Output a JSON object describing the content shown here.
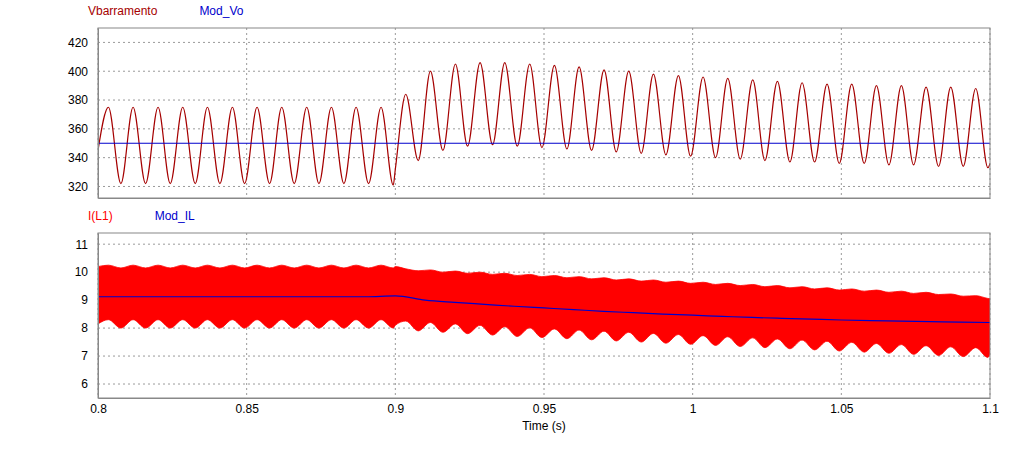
{
  "chart_data": [
    {
      "type": "line",
      "grid": true,
      "legend": "top-left",
      "tick_labels": "y",
      "xlim": [
        0.8,
        1.1
      ],
      "xticks": [
        0.8,
        0.85,
        0.9,
        0.95,
        1,
        1.05,
        1.1
      ],
      "ylim": [
        312,
        430
      ],
      "yticks": [
        320,
        340,
        360,
        380,
        400,
        420
      ],
      "series": [
        {
          "name": "Vbarramento",
          "color": "#a50000",
          "type": "line",
          "x": [
            0.8,
            0.8035,
            0.8077,
            0.8118,
            0.816,
            0.8202,
            0.8243,
            0.8285,
            0.8327,
            0.8368,
            0.841,
            0.8452,
            0.8493,
            0.8535,
            0.8577,
            0.8618,
            0.866,
            0.8702,
            0.8743,
            0.8785,
            0.8827,
            0.8868,
            0.891,
            0.8952,
            0.8993,
            0.9,
            0.9035,
            0.9077,
            0.9118,
            0.916,
            0.9202,
            0.9243,
            0.9285,
            0.9327,
            0.9368,
            0.941,
            0.9452,
            0.9493,
            0.9535,
            0.9577,
            0.9618,
            0.966,
            0.9702,
            0.9743,
            0.9785,
            0.9827,
            0.9868,
            0.991,
            0.9952,
            0.9993,
            1.0035,
            1.0077,
            1.0118,
            1.016,
            1.0202,
            1.0243,
            1.0285,
            1.0327,
            1.0368,
            1.041,
            1.0452,
            1.0493,
            1.0535,
            1.0577,
            1.0618,
            1.066,
            1.0702,
            1.0743,
            1.0785,
            1.0827,
            1.0868,
            1.091,
            1.0952,
            1.0993,
            1.1
          ],
          "values": [
            345,
            375,
            322,
            375,
            322,
            375,
            322,
            375,
            322,
            375,
            322,
            375,
            322,
            375,
            322,
            375,
            322,
            375,
            322,
            375,
            322,
            375,
            322,
            375,
            321,
            332,
            384,
            338,
            400,
            345,
            405,
            348,
            406,
            349,
            406,
            348,
            405,
            347,
            404,
            346,
            403,
            345,
            401,
            344,
            400,
            343,
            398,
            342,
            397,
            341,
            396,
            340,
            395,
            339,
            394,
            338,
            393,
            337,
            392,
            337,
            391,
            336,
            391,
            336,
            390,
            335,
            390,
            335,
            389,
            334,
            389,
            334,
            388,
            333,
            336
          ]
        },
        {
          "name": "Mod_Vo",
          "color": "#0000cc",
          "type": "line",
          "x": [
            0.8,
            1.1
          ],
          "values": [
            350,
            350
          ]
        }
      ]
    },
    {
      "type": "line",
      "grid": true,
      "legend": "top-left",
      "tick_labels": true,
      "xlabel": "Time (s)",
      "xlim": [
        0.8,
        1.1
      ],
      "xticks": [
        0.8,
        0.85,
        0.9,
        0.95,
        1,
        1.05,
        1.1
      ],
      "ylim": [
        5.5,
        11.4
      ],
      "yticks": [
        6,
        7,
        8,
        9,
        10,
        11
      ],
      "series": [
        {
          "name": "I(L1)",
          "color": "#ff0000",
          "type": "area",
          "x": [
            0.8,
            0.8035,
            0.8077,
            0.8118,
            0.816,
            0.8202,
            0.8243,
            0.8285,
            0.8327,
            0.8368,
            0.841,
            0.8452,
            0.8493,
            0.8535,
            0.8577,
            0.8618,
            0.866,
            0.8702,
            0.8743,
            0.8785,
            0.8827,
            0.8868,
            0.891,
            0.8952,
            0.8993,
            0.9,
            0.9035,
            0.9077,
            0.9118,
            0.916,
            0.9202,
            0.9243,
            0.9285,
            0.9327,
            0.9368,
            0.941,
            0.9452,
            0.9493,
            0.9535,
            0.9577,
            0.9618,
            0.966,
            0.9702,
            0.9743,
            0.9785,
            0.9827,
            0.9868,
            0.991,
            0.9952,
            0.9993,
            1.0035,
            1.0077,
            1.0118,
            1.016,
            1.0202,
            1.0243,
            1.0285,
            1.0327,
            1.0368,
            1.041,
            1.0452,
            1.0493,
            1.0535,
            1.0577,
            1.0618,
            1.066,
            1.0702,
            1.0743,
            1.0785,
            1.0827,
            1.0868,
            1.091,
            1.0952,
            1.0993,
            1.1
          ],
          "low": [
            8.15,
            8.3,
            8.0,
            8.3,
            8.0,
            8.3,
            8.0,
            8.3,
            8.0,
            8.3,
            8.0,
            8.3,
            8.0,
            8.3,
            8.0,
            8.3,
            8.0,
            8.3,
            8.0,
            8.3,
            8.0,
            8.3,
            8.0,
            8.3,
            8.0,
            8.1,
            8.25,
            7.9,
            8.2,
            7.85,
            8.15,
            7.8,
            8.1,
            7.75,
            8.05,
            7.7,
            8.01,
            7.66,
            7.97,
            7.62,
            7.93,
            7.58,
            7.89,
            7.54,
            7.85,
            7.5,
            7.81,
            7.46,
            7.77,
            7.42,
            7.73,
            7.38,
            7.69,
            7.34,
            7.65,
            7.3,
            7.61,
            7.26,
            7.57,
            7.22,
            7.53,
            7.18,
            7.49,
            7.14,
            7.45,
            7.1,
            7.41,
            7.06,
            7.37,
            7.02,
            7.33,
            6.98,
            7.3,
            6.95,
            7.1
          ],
          "high": [
            10.2,
            10.25,
            10.15,
            10.25,
            10.15,
            10.25,
            10.15,
            10.25,
            10.15,
            10.25,
            10.15,
            10.25,
            10.15,
            10.25,
            10.15,
            10.25,
            10.15,
            10.25,
            10.15,
            10.25,
            10.15,
            10.25,
            10.15,
            10.25,
            10.15,
            10.2,
            10.12,
            10.05,
            10.08,
            10.0,
            10.04,
            9.96,
            10.0,
            9.92,
            9.96,
            9.88,
            9.92,
            9.84,
            9.88,
            9.8,
            9.84,
            9.76,
            9.8,
            9.72,
            9.76,
            9.68,
            9.72,
            9.64,
            9.68,
            9.6,
            9.64,
            9.56,
            9.6,
            9.52,
            9.56,
            9.48,
            9.52,
            9.44,
            9.48,
            9.4,
            9.44,
            9.36,
            9.4,
            9.32,
            9.36,
            9.28,
            9.32,
            9.24,
            9.28,
            9.2,
            9.22,
            9.14,
            9.16,
            9.06,
            9.05
          ]
        },
        {
          "name": "Mod_IL",
          "color": "#0000cc",
          "type": "line",
          "x": [
            0.8,
            0.81,
            0.82,
            0.83,
            0.84,
            0.85,
            0.86,
            0.87,
            0.88,
            0.89,
            0.9,
            0.91,
            0.92,
            0.93,
            0.94,
            0.95,
            0.96,
            0.97,
            0.98,
            0.99,
            1.0,
            1.01,
            1.02,
            1.03,
            1.04,
            1.05,
            1.06,
            1.07,
            1.08,
            1.09,
            1.1
          ],
          "values": [
            9.12,
            9.12,
            9.12,
            9.12,
            9.12,
            9.12,
            9.12,
            9.12,
            9.12,
            9.12,
            9.15,
            9.0,
            8.92,
            8.85,
            8.78,
            8.72,
            8.66,
            8.6,
            8.55,
            8.5,
            8.46,
            8.42,
            8.38,
            8.35,
            8.32,
            8.29,
            8.27,
            8.25,
            8.23,
            8.21,
            8.2
          ]
        }
      ]
    }
  ]
}
